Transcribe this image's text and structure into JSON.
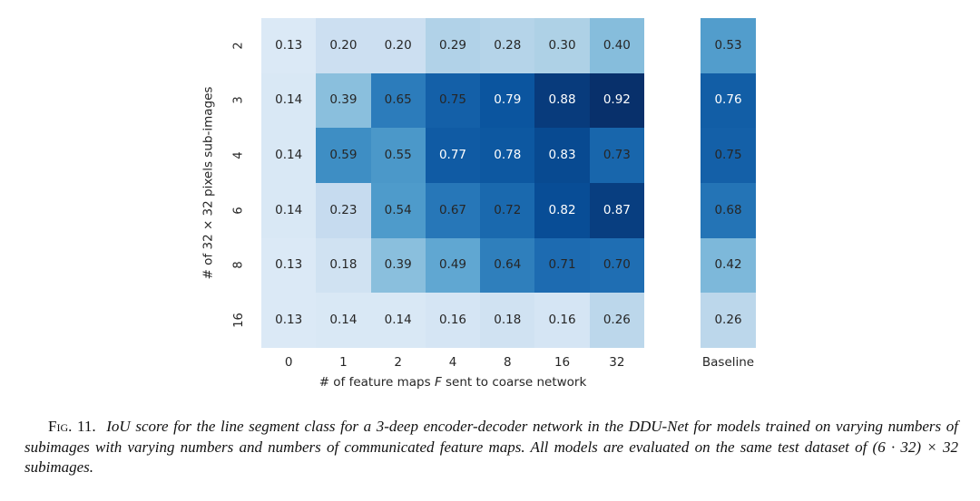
{
  "figure": {
    "xlabel_pre": "# of feature maps ",
    "xlabel_italic": "F",
    "xlabel_post": " sent to coarse network"
  },
  "chart_data": {
    "type": "heatmap",
    "title": "",
    "xlabel": "# of feature maps F sent to coarse network",
    "ylabel": "# of 32 × 32 pixels sub-images",
    "x": [
      "0",
      "1",
      "2",
      "4",
      "8",
      "16",
      "32"
    ],
    "y": [
      "2",
      "3",
      "4",
      "6",
      "8",
      "16"
    ],
    "values": [
      [
        0.13,
        0.2,
        0.2,
        0.29,
        0.28,
        0.3,
        0.4
      ],
      [
        0.14,
        0.39,
        0.65,
        0.75,
        0.79,
        0.88,
        0.92
      ],
      [
        0.14,
        0.59,
        0.55,
        0.77,
        0.78,
        0.83,
        0.73
      ],
      [
        0.14,
        0.23,
        0.54,
        0.67,
        0.72,
        0.82,
        0.87
      ],
      [
        0.13,
        0.18,
        0.39,
        0.49,
        0.64,
        0.71,
        0.7
      ],
      [
        0.13,
        0.14,
        0.14,
        0.16,
        0.18,
        0.16,
        0.26
      ]
    ],
    "baseline": {
      "label": "Baseline",
      "values": [
        0.53,
        0.76,
        0.75,
        0.68,
        0.42,
        0.26
      ]
    },
    "colormap": "Blues",
    "vmin": 0,
    "vmax": 0.92,
    "value_format": "0.00",
    "white_text_min_value": 0.76,
    "color_dark_text": "#262626",
    "color_light_text": "#ffffff",
    "grid": false,
    "legend": false
  },
  "caption": {
    "label": "Fig. 11.",
    "text": "IoU score for the line segment class for a 3-deep encoder-decoder network in the DDU-Net for models trained on varying numbers of subimages with varying numbers and numbers of communicated feature maps. All models are evaluated on the same test dataset of (6 · 32) × 32 subimages."
  }
}
